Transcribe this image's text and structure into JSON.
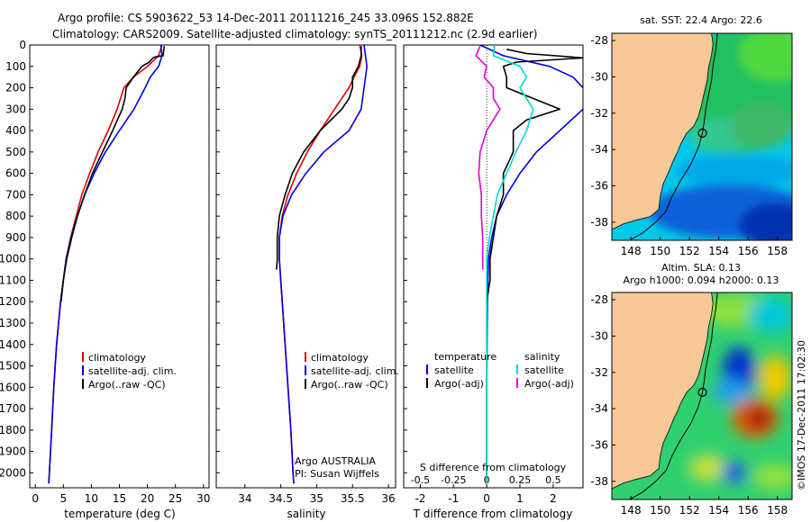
{
  "header": {
    "line1": "Argo profile: CS 5903622_53 14-Dec-2011 20111216_245 33.096S 152.882E",
    "line2": "Climatology: CARS2009. Satellite-adjusted climatology: synTS_20111212.nc (2.9d earlier)"
  },
  "colors": {
    "climatology": "#e00000",
    "satellite": "#0000e0",
    "argo": "#000000",
    "sal_satellite": "#00d8d8",
    "sal_argo": "#e000e0",
    "land": "#f8c898"
  },
  "chart_data": [
    {
      "type": "line",
      "panel": "temperature",
      "xlabel": "temperature (deg C)",
      "ylabel": "",
      "xlim": [
        -1,
        31
      ],
      "ylim": [
        2070,
        0
      ],
      "xticks": [
        0,
        5,
        10,
        15,
        20,
        25,
        30
      ],
      "yticks": [
        0,
        100,
        200,
        300,
        400,
        500,
        600,
        700,
        800,
        900,
        1000,
        1100,
        1200,
        1300,
        1400,
        1500,
        1600,
        1700,
        1800,
        1900,
        2000
      ],
      "legend": [
        "climatology",
        "satellite-adj. clim.",
        "Argo(..raw -QC)"
      ],
      "series": [
        {
          "name": "climatology",
          "color": "#e00000",
          "depth": [
            0,
            50,
            100,
            150,
            200,
            300,
            400,
            500,
            600,
            700,
            800,
            900,
            1000,
            1200,
            1400,
            1600,
            1800,
            2000,
            2050
          ],
          "values": [
            22.6,
            22.0,
            20.0,
            17.5,
            15.8,
            14.6,
            13.0,
            11.2,
            9.7,
            8.3,
            7.3,
            6.3,
            5.5,
            4.5,
            3.8,
            3.3,
            2.9,
            2.5,
            2.4
          ]
        },
        {
          "name": "satellite-adj. clim.",
          "color": "#0000e0",
          "depth": [
            0,
            50,
            100,
            150,
            200,
            300,
            400,
            500,
            600,
            700,
            800,
            900,
            1000,
            1200,
            1400,
            1600,
            1800,
            2000,
            2050
          ],
          "values": [
            22.4,
            22.6,
            22.0,
            20.5,
            19.6,
            17.6,
            15.0,
            12.5,
            10.5,
            8.8,
            7.5,
            6.4,
            5.5,
            4.5,
            3.8,
            3.3,
            2.9,
            2.5,
            2.4
          ]
        },
        {
          "name": "Argo(..raw -QC)",
          "color": "#000000",
          "depth": [
            5,
            50,
            55,
            60,
            80,
            100,
            150,
            200,
            250,
            300,
            400,
            500,
            600,
            700,
            800,
            900,
            1000,
            1100,
            1200
          ],
          "values": [
            23.0,
            22.8,
            21.5,
            21.0,
            20.3,
            19.0,
            17.5,
            16.2,
            16.0,
            15.5,
            13.8,
            12.0,
            10.2,
            8.8,
            7.5,
            6.5,
            5.6,
            5.0,
            4.6
          ]
        }
      ]
    },
    {
      "type": "line",
      "panel": "salinity",
      "xlabel": "salinity",
      "xlim": [
        33.6,
        36.1
      ],
      "ylim": [
        2070,
        0
      ],
      "xticks": [
        34,
        34.5,
        35,
        35.5,
        36
      ],
      "legend": [
        "climatology",
        "satellite-adj. clim.",
        "Argo(..raw -QC)"
      ],
      "annotations": [
        "Argo AUSTRALIA",
        "PI: Susan Wijffels"
      ],
      "series": [
        {
          "name": "climatology",
          "color": "#e00000",
          "depth": [
            0,
            50,
            100,
            150,
            200,
            300,
            400,
            500,
            600,
            700,
            800,
            900,
            1000,
            1200,
            1400,
            1600,
            1800,
            2000,
            2050
          ],
          "values": [
            35.6,
            35.63,
            35.6,
            35.52,
            35.45,
            35.25,
            35.05,
            34.87,
            34.72,
            34.6,
            34.52,
            34.48,
            34.48,
            34.52,
            34.56,
            34.6,
            34.64,
            34.67,
            34.68
          ]
        },
        {
          "name": "satellite-adj. clim.",
          "color": "#0000e0",
          "depth": [
            0,
            50,
            100,
            150,
            200,
            300,
            400,
            500,
            600,
            700,
            800,
            900,
            1000,
            1200,
            1400,
            1600,
            1800,
            2000,
            2050
          ],
          "values": [
            35.66,
            35.68,
            35.7,
            35.68,
            35.66,
            35.62,
            35.45,
            35.1,
            34.85,
            34.65,
            34.53,
            34.48,
            34.48,
            34.52,
            34.56,
            34.6,
            34.64,
            34.67,
            34.68
          ]
        },
        {
          "name": "Argo(..raw -QC)",
          "color": "#000000",
          "depth": [
            5,
            50,
            100,
            150,
            200,
            250,
            300,
            400,
            500,
            600,
            700,
            800,
            900,
            1000,
            1050
          ],
          "values": [
            35.62,
            35.62,
            35.58,
            35.5,
            35.5,
            35.45,
            35.35,
            35.05,
            34.82,
            34.66,
            34.56,
            34.48,
            34.45,
            34.45,
            34.44
          ]
        }
      ]
    },
    {
      "type": "line",
      "panel": "difference",
      "xlabel": "T difference from climatology",
      "xlabel_top": "S difference from climatology",
      "xlim": [
        -2.5,
        2.9
      ],
      "ylim": [
        2070,
        0
      ],
      "xticks": [
        -2,
        -1,
        0,
        1,
        2
      ],
      "sticks": [
        "-0.5",
        "-0.25",
        "0",
        "0.25",
        "0.5"
      ],
      "legend": {
        "temperature": "temperature",
        "salinity": "salinity",
        "t_sat": "satellite",
        "t_argo": "Argo(-adj)",
        "s_sat": "satellite",
        "s_argo": "Argo(-adj)"
      },
      "series": [
        {
          "name": "temperature satellite",
          "color": "#0000e0",
          "depth": [
            0,
            50,
            100,
            150,
            200,
            250,
            300,
            400,
            500,
            600,
            700,
            800,
            900,
            1000,
            1200,
            1400,
            1600,
            1800,
            2000,
            2050
          ],
          "values": [
            -0.2,
            0.5,
            1.9,
            2.6,
            2.9,
            3.0,
            2.9,
            2.2,
            1.5,
            1.0,
            0.6,
            0.3,
            0.15,
            0.05,
            0.02,
            0.01,
            0.0,
            0.0,
            0.0,
            0.0
          ]
        },
        {
          "name": "temperature Argo(-adj)",
          "color": "#000000",
          "depth": [
            20,
            40,
            60,
            80,
            100,
            150,
            200,
            250,
            300,
            350,
            400,
            500,
            600,
            700,
            800,
            900,
            1000,
            1100,
            1200
          ],
          "values": [
            0.6,
            1.2,
            2.9,
            0.9,
            0.5,
            0.6,
            0.6,
            1.4,
            2.2,
            1.2,
            0.8,
            0.8,
            0.5,
            0.5,
            0.3,
            0.2,
            0.1,
            0.1,
            0.0
          ]
        },
        {
          "name": "salinity satellite",
          "color": "#00d8d8",
          "depth": [
            0,
            50,
            100,
            150,
            200,
            300,
            400,
            500,
            600,
            700,
            800,
            900,
            1000,
            1200,
            1400,
            1600,
            1800,
            2000,
            2050
          ],
          "values": [
            0.06,
            0.05,
            0.25,
            0.3,
            0.25,
            0.35,
            0.3,
            0.22,
            0.15,
            0.08,
            0.05,
            0.02,
            0.0,
            0.0,
            0.0,
            0.0,
            0.0,
            0.0,
            0.0
          ]
        },
        {
          "name": "salinity Argo(-adj)",
          "color": "#e000e0",
          "depth": [
            5,
            50,
            100,
            150,
            200,
            250,
            300,
            400,
            500,
            600,
            700,
            800,
            900,
            1000,
            1050
          ],
          "values": [
            -0.05,
            -0.08,
            0.0,
            -0.02,
            0.05,
            0.05,
            0.1,
            0.0,
            -0.05,
            -0.06,
            -0.04,
            -0.04,
            -0.03,
            -0.03,
            -0.03
          ]
        }
      ]
    },
    {
      "type": "heatmap",
      "panel": "sst-map",
      "title": "sat. SST: 22.4  Argo: 22.6",
      "xlim": [
        146.7,
        159.0
      ],
      "ylim": [
        -39.0,
        -27.6
      ],
      "xticks": [
        148,
        150,
        152,
        154,
        156,
        158
      ],
      "yticks": [
        -28,
        -30,
        -32,
        -34,
        -36,
        -38
      ],
      "float_position": {
        "lon": 152.882,
        "lat": -33.096
      }
    },
    {
      "type": "heatmap",
      "panel": "sla-map",
      "title": "Altim. SLA: 0.13",
      "subtitle": "Argo h1000: 0.094  h2000: 0.13",
      "xlim": [
        146.7,
        159.0
      ],
      "ylim": [
        -39.0,
        -27.6
      ],
      "xticks": [
        148,
        150,
        152,
        154,
        156,
        158
      ],
      "yticks": [
        -28,
        -30,
        -32,
        -34,
        -36,
        -38
      ],
      "float_position": {
        "lon": 152.882,
        "lat": -33.096
      }
    }
  ],
  "credit": "©IMOS 17-Dec-2011 17:02:30"
}
